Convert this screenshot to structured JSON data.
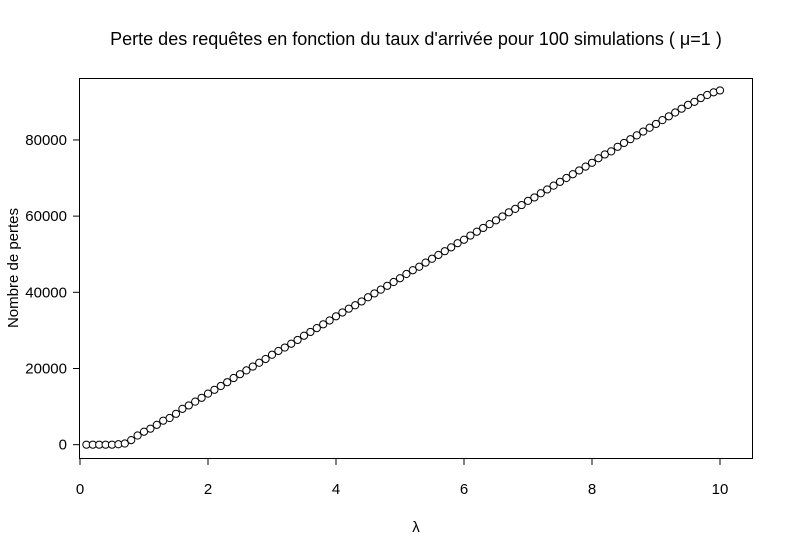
{
  "chart_data": {
    "type": "scatter",
    "title": "Perte des requêtes en fonction du taux d'arrivée pour 100 simulations ( μ=1 )",
    "xlabel": "λ",
    "ylabel": "Nombre de pertes",
    "xlim": [
      0,
      10.5
    ],
    "ylim": [
      -3500,
      96000
    ],
    "x_ticks": [
      0,
      2,
      4,
      6,
      8,
      10
    ],
    "x_tick_labels": [
      "0",
      "2",
      "4",
      "6",
      "8",
      "10"
    ],
    "y_ticks": [
      0,
      20000,
      40000,
      60000,
      80000
    ],
    "y_tick_labels": [
      "0",
      "20000",
      "40000",
      "60000",
      "80000"
    ],
    "grid": false,
    "legend": "none",
    "marker": "open-circle",
    "series": [
      {
        "x": [
          0.1,
          0.2,
          0.3,
          0.4,
          0.5,
          0.6,
          0.7,
          0.8,
          0.9,
          1.0,
          1.1,
          1.2,
          1.3,
          1.4,
          1.5,
          1.6,
          1.7,
          1.8,
          1.9,
          2.0,
          2.1,
          2.2,
          2.3,
          2.4,
          2.5,
          2.6,
          2.7,
          2.8,
          2.9,
          3.0,
          3.1,
          3.2,
          3.3,
          3.4,
          3.5,
          3.6,
          3.7,
          3.8,
          3.9,
          4.0,
          4.1,
          4.2,
          4.3,
          4.4,
          4.5,
          4.6,
          4.7,
          4.8,
          4.9,
          5.0,
          5.1,
          5.2,
          5.3,
          5.4,
          5.5,
          5.6,
          5.7,
          5.8,
          5.9,
          6.0,
          6.1,
          6.2,
          6.3,
          6.4,
          6.5,
          6.6,
          6.7,
          6.8,
          6.9,
          7.0,
          7.1,
          7.2,
          7.3,
          7.4,
          7.5,
          7.6,
          7.7,
          7.8,
          7.9,
          8.0,
          8.1,
          8.2,
          8.3,
          8.4,
          8.5,
          8.6,
          8.7,
          8.8,
          8.9,
          9.0,
          9.1,
          9.2,
          9.3,
          9.4,
          9.5,
          9.6,
          9.7,
          9.8,
          9.9,
          10.0
        ],
        "y": [
          0,
          0,
          0,
          0,
          0,
          100,
          300,
          1200,
          2400,
          3400,
          4200,
          5200,
          6300,
          7000,
          8100,
          9400,
          10300,
          11300,
          12300,
          13400,
          14400,
          15400,
          16400,
          17500,
          18500,
          19500,
          20500,
          21500,
          22500,
          23600,
          24600,
          25500,
          26500,
          27500,
          28600,
          29600,
          30600,
          31600,
          32600,
          33700,
          34700,
          35700,
          36600,
          37600,
          38700,
          39700,
          40700,
          41700,
          42700,
          43700,
          44800,
          45800,
          46700,
          47800,
          48800,
          49800,
          50800,
          51800,
          52900,
          53800,
          54900,
          55900,
          56900,
          57900,
          58900,
          59900,
          61000,
          61900,
          62900,
          64000,
          64900,
          66000,
          67000,
          68000,
          69000,
          70000,
          71000,
          72000,
          73000,
          74000,
          75200,
          76200,
          77000,
          78200,
          79200,
          80200,
          81200,
          82200,
          83200,
          84200,
          85200,
          86200,
          87200,
          88200,
          89200,
          90000,
          91000,
          91800,
          92500,
          93000
        ]
      }
    ]
  }
}
